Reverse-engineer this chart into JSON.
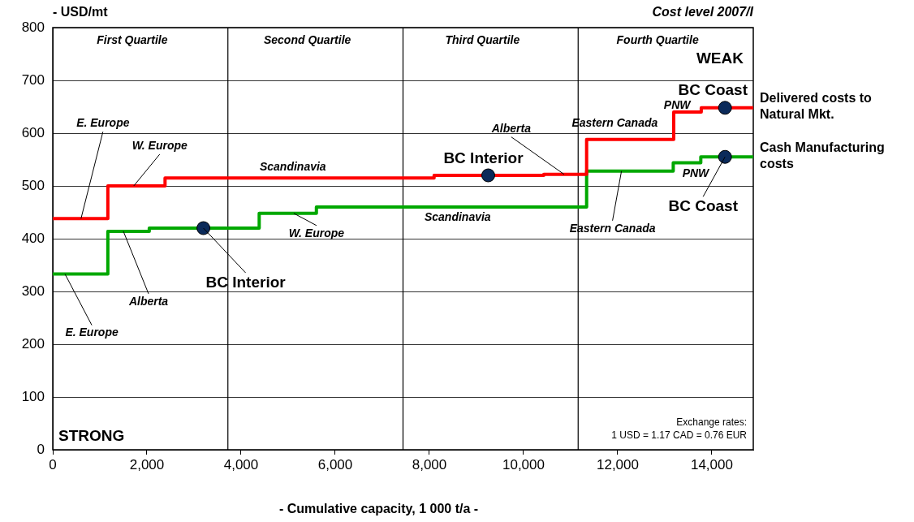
{
  "chart_data": {
    "type": "step",
    "title": "Cost level 2007/I",
    "xlabel": "- Cumulative capacity, 1 000 t/a -",
    "ylabel": "- USD/mt",
    "xlim": [
      0,
      14880
    ],
    "ylim": [
      0,
      800
    ],
    "xticks": [
      0,
      {
        "value": 2000,
        "label": "2,000"
      },
      {
        "value": 4000,
        "label": "4,000"
      },
      {
        "value": 6000,
        "label": "6,000"
      },
      {
        "value": 8000,
        "label": "8,000"
      },
      {
        "value": 10000,
        "label": "10,000"
      },
      {
        "value": 12000,
        "label": "12,000"
      },
      {
        "value": 14000,
        "label": "14,000"
      }
    ],
    "yticks": [
      0,
      100,
      200,
      300,
      400,
      500,
      600,
      700,
      800
    ],
    "grid": "y",
    "legend": false,
    "series": [
      {
        "name": "Delivered costs to Natural Mkt.",
        "type": "step",
        "color": "#ff0000",
        "x": [
          0,
          1170,
          2385,
          8100,
          10430,
          11340,
          13190,
          13775,
          14880
        ],
        "values": [
          438,
          500,
          515,
          520,
          522,
          588,
          640,
          648,
          648
        ]
      },
      {
        "name": "Cash Manufacturing costs",
        "type": "step",
        "color": "#00a800",
        "x": [
          0,
          1170,
          2050,
          4385,
          5600,
          11340,
          13180,
          13765,
          14880
        ],
        "values": [
          333,
          414,
          420,
          448,
          460,
          528,
          544,
          555,
          555
        ]
      },
      {
        "type": "scatter",
        "marker": "circle",
        "color": "#0b2a5a",
        "x": [
          9250,
          14280
        ],
        "values": [
          520,
          648
        ]
      },
      {
        "type": "scatter",
        "marker": "circle",
        "color": "#0b2a5a",
        "x": [
          3200,
          14280
        ],
        "values": [
          420,
          555
        ]
      }
    ],
    "ref_lines": [
      {
        "axis": "x",
        "value": 3720,
        "color": "#000000"
      },
      {
        "axis": "x",
        "value": 7440,
        "color": "#000000"
      },
      {
        "axis": "x",
        "value": 11160,
        "color": "#000000"
      }
    ],
    "annotations": [
      {
        "text": "E. Europe",
        "x": 600,
        "y": 438
      },
      {
        "text": "W. Europe",
        "x": 1720,
        "y": 500
      },
      {
        "text": "Scandinavia",
        "x": 5100,
        "y": 515
      },
      {
        "text": "Alberta",
        "x": 10860,
        "y": 522
      },
      {
        "text": "BC Interior",
        "x": 9250,
        "y": 520
      },
      {
        "text": "Eastern Canada",
        "x": 12300,
        "y": 588
      },
      {
        "text": "PNW",
        "x": 13400,
        "y": 640
      },
      {
        "text": "BC Coast",
        "x": 14280,
        "y": 648
      },
      {
        "text": "E. Europe",
        "x": 260,
        "y": 333
      },
      {
        "text": "Alberta",
        "x": 1500,
        "y": 414
      },
      {
        "text": "BC Interior",
        "x": 3200,
        "y": 420
      },
      {
        "text": "W. Europe",
        "x": 5120,
        "y": 448
      },
      {
        "text": "Scandinavia",
        "x": 8600,
        "y": 460
      },
      {
        "text": "Eastern Canada",
        "x": 12080,
        "y": 528
      },
      {
        "text": "PNW",
        "x": 13500,
        "y": 544
      },
      {
        "text": "BC Coast",
        "x": 14280,
        "y": 555
      },
      "First Quartile",
      "Second Quartile",
      "Third Quartile",
      "Fourth Quartile",
      "WEAK",
      "STRONG",
      "Exchange rates:",
      "1 USD = 1.17 CAD = 0.76 EUR"
    ]
  }
}
